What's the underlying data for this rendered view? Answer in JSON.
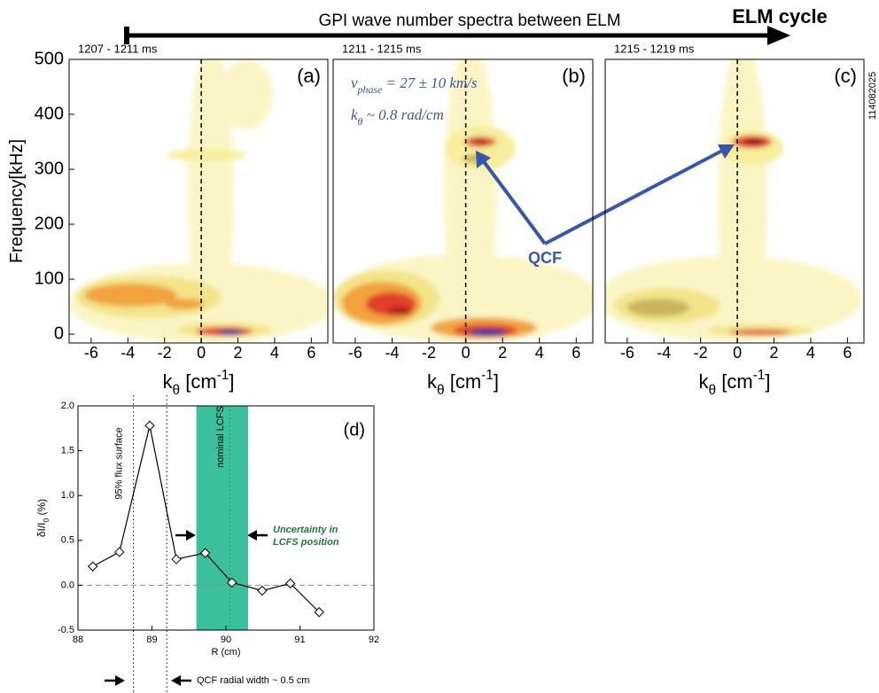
{
  "figure": {
    "title": "GPI wave number spectra between ELM",
    "arrow_label": "ELM cycle",
    "shot_id": "114082025",
    "qcf_label": "QCF"
  },
  "chart_data": [
    {
      "type": "contour",
      "subtitle": "1207 - 1211 ms",
      "panel_label": "(a)",
      "ylabel": [
        {
          "text": "Frequency[kHz]"
        }
      ],
      "xlabel": [
        {
          "text": "k"
        },
        {
          "text": "θ",
          "shift": "sub"
        },
        {
          "text": " [cm"
        },
        {
          "text": "-1",
          "shift": "super"
        },
        {
          "text": "]"
        }
      ],
      "xlim": [
        -7.2,
        6.9
      ],
      "xticks": [
        -6,
        -4,
        -2,
        0,
        2,
        4,
        6
      ],
      "ylim": [
        -16,
        500
      ],
      "yticks": [
        0,
        100,
        200,
        300,
        400,
        500
      ],
      "vline": 0
    },
    {
      "type": "contour",
      "subtitle": "1211 - 1215 ms",
      "panel_label": "(b)",
      "xlabel": [
        {
          "text": "k"
        },
        {
          "text": "θ",
          "shift": "sub"
        },
        {
          "text": " [cm"
        },
        {
          "text": "-1",
          "shift": "super"
        },
        {
          "text": "]"
        }
      ],
      "annotations": [
        [
          {
            "text": "v"
          },
          {
            "text": "phase",
            "shift": "sub"
          },
          {
            "text": " = 27 ± 10 km/s"
          }
        ],
        [
          {
            "text": "k"
          },
          {
            "text": "θ",
            "shift": "sub"
          },
          {
            "text": " ~ 0.8 rad/cm"
          }
        ]
      ],
      "xlim": [
        -7.2,
        6.9
      ],
      "xticks": [
        -6,
        -4,
        -2,
        0,
        2,
        4,
        6
      ],
      "ylim": [
        -16,
        500
      ],
      "vline": 0
    },
    {
      "type": "contour",
      "subtitle": "1215 - 1219 ms",
      "panel_label": "(c)",
      "xlabel": [
        {
          "text": "k"
        },
        {
          "text": "θ",
          "shift": "sub"
        },
        {
          "text": " [cm"
        },
        {
          "text": "-1",
          "shift": "super"
        },
        {
          "text": "]"
        }
      ],
      "xlim": [
        -7.2,
        6.9
      ],
      "xticks": [
        -6,
        -4,
        -2,
        0,
        2,
        4,
        6
      ],
      "ylim": [
        -16,
        500
      ],
      "vline": 0
    },
    {
      "type": "line",
      "panel_label": "(d)",
      "xlabel": [
        {
          "text": "R (cm)"
        }
      ],
      "ylabel": [
        {
          "text": "δI/I"
        },
        {
          "text": "0",
          "shift": "sub"
        },
        {
          "text": " (%)"
        }
      ],
      "x": [
        88.2,
        88.56,
        88.97,
        89.33,
        89.72,
        90.08,
        90.49,
        90.87,
        91.26
      ],
      "values": [
        0.21,
        0.37,
        1.78,
        0.29,
        0.36,
        0.03,
        -0.06,
        0.02,
        -0.3
      ],
      "color": "#000000",
      "xlim": [
        88,
        92
      ],
      "xticks": [
        88,
        89,
        90,
        91,
        92
      ],
      "ylim": [
        -0.5,
        2.0
      ],
      "yticks": [
        -0.5,
        {
          "value": 0,
          "label": "0.0"
        },
        0.5,
        {
          "value": 1,
          "label": "1.0"
        },
        1.5,
        {
          "value": 2,
          "label": "2.0"
        }
      ],
      "hline": 0,
      "flux_lines": [
        88.75,
        89.2
      ],
      "flux_label": "95% flux surface",
      "band": [
        89.6,
        90.3
      ],
      "band_color": "#3cc09b",
      "lcfs": 90.05,
      "lcfs_label": "nominal LCFS",
      "uncertainty_label": [
        "Uncertainty in",
        "LCFS position"
      ],
      "width_label": "QCF radial width ~ 0.5 cm"
    }
  ]
}
